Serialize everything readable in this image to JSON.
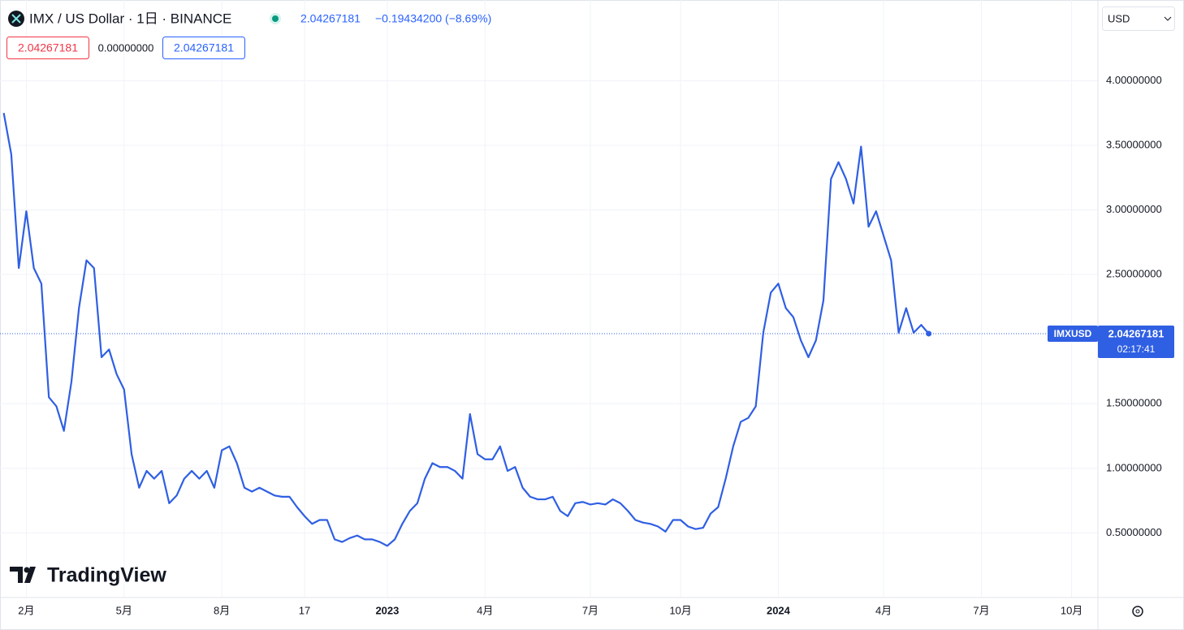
{
  "header": {
    "symbol": "IMX / US Dollar · 1日 · BINANCE",
    "change": "−0.19434200 (−8.69%)",
    "open_diff": "0.00000000",
    "currency": "USD",
    "ticker": "IMXUSD",
    "countdown": "02:17:41",
    "brand": "TradingView"
  },
  "chart_data": {
    "type": "line",
    "color": "#2f5fe3",
    "grid": true,
    "categories": [
      null,
      null,
      null,
      "2月",
      null,
      null,
      null,
      null,
      null,
      null,
      null,
      null,
      null,
      null,
      null,
      null,
      "5月",
      null,
      null,
      null,
      null,
      null,
      null,
      null,
      null,
      null,
      null,
      null,
      null,
      "8月",
      null,
      null,
      null,
      null,
      null,
      null,
      null,
      null,
      null,
      null,
      "17",
      null,
      null,
      null,
      null,
      null,
      null,
      null,
      null,
      null,
      null,
      "2023",
      null,
      null,
      null,
      null,
      null,
      null,
      null,
      null,
      null,
      null,
      null,
      null,
      "4月",
      null,
      null,
      null,
      null,
      null,
      null,
      null,
      null,
      null,
      null,
      null,
      null,
      null,
      "7月",
      null,
      null,
      null,
      null,
      null,
      null,
      null,
      null,
      null,
      null,
      null,
      "10月",
      null,
      null,
      null,
      null,
      null,
      null,
      null,
      null,
      null,
      null,
      null,
      null,
      "2024",
      null,
      null,
      null,
      null,
      null,
      null,
      null,
      null,
      null,
      null,
      null,
      null,
      null,
      "4月",
      null,
      null,
      null,
      null,
      null,
      null,
      null,
      null,
      null,
      null,
      null,
      null,
      "7月",
      null,
      null,
      null,
      null,
      null,
      null,
      null,
      null,
      null,
      null,
      null,
      "10月",
      null,
      null,
      null
    ],
    "series": [
      {
        "name": "IMXUSD",
        "color": "#2f5fe3",
        "values": [
          3.75,
          3.43,
          2.55,
          2.99,
          2.55,
          2.43,
          1.55,
          1.48,
          1.29,
          1.67,
          2.24,
          2.61,
          2.55,
          1.86,
          1.92,
          1.73,
          1.61,
          1.11,
          0.85,
          0.98,
          0.92,
          0.98,
          0.73,
          0.79,
          0.92,
          0.98,
          0.92,
          0.98,
          0.85,
          1.14,
          1.17,
          1.04,
          0.85,
          0.82,
          0.85,
          0.82,
          0.79,
          0.78,
          0.78,
          0.7,
          0.63,
          0.57,
          0.6,
          0.6,
          0.45,
          0.43,
          0.46,
          0.48,
          0.45,
          0.45,
          0.43,
          0.4,
          0.45,
          0.57,
          0.67,
          0.73,
          0.92,
          1.04,
          1.01,
          1.01,
          0.98,
          0.92,
          1.42,
          1.11,
          1.07,
          1.07,
          1.17,
          0.98,
          1.01,
          0.85,
          0.78,
          0.76,
          0.76,
          0.78,
          0.67,
          0.63,
          0.73,
          0.74,
          0.72,
          0.73,
          0.72,
          0.76,
          0.73,
          0.67,
          0.6,
          0.58,
          0.57,
          0.55,
          0.51,
          0.6,
          0.6,
          0.55,
          0.53,
          0.54,
          0.65,
          0.7,
          0.92,
          1.17,
          1.36,
          1.39,
          1.48,
          2.05,
          2.36,
          2.43,
          2.24,
          2.17,
          1.99,
          1.86,
          1.99,
          2.3,
          3.24,
          3.37,
          3.24,
          3.05,
          3.49,
          2.87,
          2.99,
          2.8,
          2.61,
          2.05,
          2.24,
          2.05,
          2.11,
          2.04267181,
          null,
          null,
          null,
          null,
          null,
          null,
          null,
          null,
          null,
          null,
          null,
          null,
          null,
          null,
          null,
          null,
          null,
          null,
          null,
          null,
          null,
          null
        ]
      }
    ],
    "ylim": [
      0,
      4.625
    ],
    "yticks": [
      {
        "value": 0.5,
        "label": "0.50000000"
      },
      {
        "value": 1,
        "label": "1.00000000"
      },
      {
        "value": 1.5,
        "label": "1.50000000"
      },
      {
        "value": 2.5,
        "label": "2.50000000"
      },
      {
        "value": 3,
        "label": "3.00000000"
      },
      {
        "value": 3.5,
        "label": "3.50000000"
      },
      {
        "value": 4,
        "label": "4.00000000"
      }
    ]
  }
}
